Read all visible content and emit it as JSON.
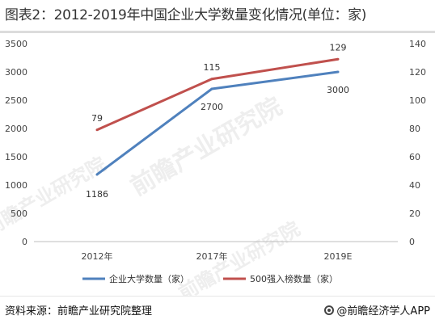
{
  "title": "图表2：2012-2019年中国企业大学数量变化情况(单位：家)",
  "source": "资料来源：前瞻产业研究院整理",
  "brand": "@前瞻经济学人APP",
  "watermark": "前瞻产业研究院",
  "chart_data": {
    "type": "line",
    "categories": [
      "2012年",
      "2017年",
      "2019E"
    ],
    "series": [
      {
        "name": "企业大学数量（家）",
        "axis": "left",
        "color": "#4f81bd",
        "values": [
          1186,
          2700,
          3000
        ]
      },
      {
        "name": "500强入榜数量（家）",
        "axis": "right",
        "color": "#c0504d",
        "values": [
          79,
          115,
          129
        ]
      }
    ],
    "y_left": {
      "min": 0,
      "max": 3500,
      "ticks": [
        0,
        500,
        1000,
        1500,
        2000,
        2500,
        3000,
        3500
      ]
    },
    "y_right": {
      "min": 0,
      "max": 140,
      "ticks": [
        0,
        20,
        40,
        60,
        80,
        100,
        120,
        140
      ]
    },
    "legend_position": "bottom",
    "grid": false
  }
}
